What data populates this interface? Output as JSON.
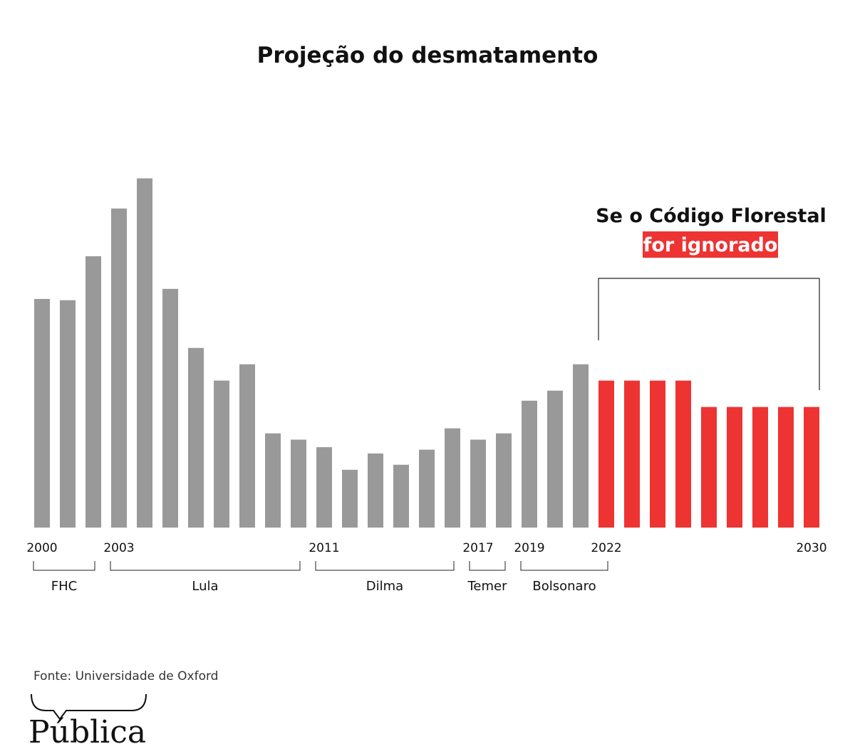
{
  "chart_data": {
    "type": "bar",
    "title": "Projeção do desmatamento",
    "x": [
      2000,
      2001,
      2002,
      2003,
      2004,
      2005,
      2006,
      2007,
      2008,
      2009,
      2010,
      2011,
      2012,
      2013,
      2014,
      2015,
      2016,
      2017,
      2018,
      2019,
      2020,
      2021,
      2022,
      2023,
      2024,
      2025,
      2026,
      2027,
      2028,
      2029,
      2030
    ],
    "series": [
      {
        "kind": "historical",
        "values": [
          18.2,
          18.1,
          21.6,
          25.4,
          27.8,
          19.0,
          14.3,
          11.7,
          13.0,
          7.5,
          7.0,
          6.4,
          4.6,
          5.9,
          5.0,
          6.2,
          7.9,
          7.0,
          7.5,
          10.1,
          10.9,
          13.0,
          null,
          null,
          null,
          null,
          null,
          null,
          null,
          null,
          null
        ],
        "color": "#999999"
      },
      {
        "kind": "projection",
        "values": [
          null,
          null,
          null,
          null,
          null,
          null,
          null,
          null,
          null,
          null,
          null,
          null,
          null,
          null,
          null,
          null,
          null,
          null,
          null,
          null,
          null,
          null,
          11.7,
          11.7,
          11.7,
          11.7,
          9.6,
          9.6,
          9.6,
          9.6,
          9.6
        ],
        "color": "#ee3333"
      }
    ],
    "tick_labels": [
      "2000",
      "2003",
      "2011",
      "2017",
      "2019",
      "2022",
      "2030"
    ],
    "ylim": [
      0,
      28
    ],
    "grid": false,
    "eras": [
      {
        "label": "FHC",
        "start": 2000,
        "end": 2002
      },
      {
        "label": "Lula",
        "start": 2003,
        "end": 2010
      },
      {
        "label": "Dilma",
        "start": 2011,
        "end": 2016
      },
      {
        "label": "Temer",
        "start": 2017,
        "end": 2018
      },
      {
        "label": "Bolsonaro",
        "start": 2019,
        "end": 2022
      }
    ],
    "annotation": {
      "line1": "Se o Código Florestal",
      "line2": "for ignorado",
      "start": 2022,
      "end": 2030
    },
    "source": "Fonte: Universidade de Oxford"
  },
  "brand": {
    "logo": "Pública"
  }
}
